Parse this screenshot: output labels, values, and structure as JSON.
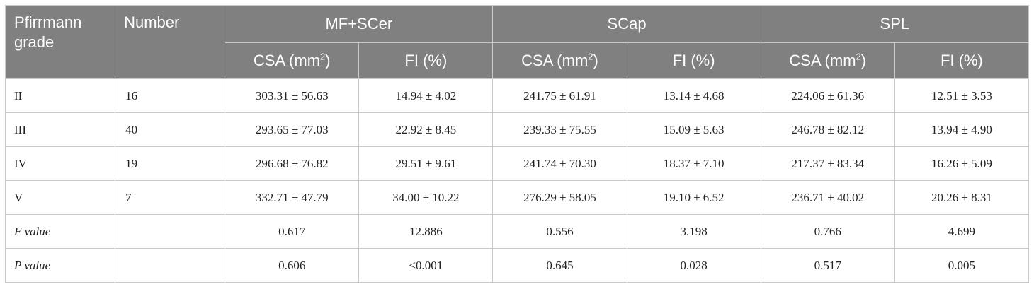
{
  "header": {
    "col_grade": "Pfirrmann grade",
    "col_number": "Number",
    "groups": [
      "MF+SCer",
      "SCap",
      "SPL"
    ],
    "csa_prefix": "CSA (mm",
    "csa_sup": "2",
    "csa_suffix": ")",
    "fi": "FI (%)"
  },
  "rows": [
    {
      "grade": "II",
      "number": "16",
      "values": [
        "303.31 ± 56.63",
        "14.94 ± 4.02",
        "241.75 ± 61.91",
        "13.14 ± 4.68",
        "224.06 ± 61.36",
        "12.51 ± 3.53"
      ]
    },
    {
      "grade": "III",
      "number": "40",
      "values": [
        "293.65 ± 77.03",
        "22.92 ± 8.45",
        "239.33 ± 75.55",
        "15.09 ± 5.63",
        "246.78 ± 82.12",
        "13.94 ± 4.90"
      ]
    },
    {
      "grade": "IV",
      "number": "19",
      "values": [
        "296.68 ± 76.82",
        "29.51 ± 9.61",
        "241.74 ± 70.30",
        "18.37 ± 7.10",
        "217.37 ± 83.34",
        "16.26 ± 5.09"
      ]
    },
    {
      "grade": "V",
      "number": "7",
      "values": [
        "332.71 ± 47.79",
        "34.00 ± 10.22",
        "276.29 ± 58.05",
        "19.10 ± 6.52",
        "236.71 ± 40.02",
        "20.26 ± 8.31"
      ]
    },
    {
      "grade": "F value",
      "number": "",
      "values": [
        "0.617",
        "12.886",
        "0.556",
        "3.198",
        "0.766",
        "4.699"
      ]
    },
    {
      "grade": "P value",
      "number": "",
      "values": [
        "0.606",
        "<0.001",
        "0.645",
        "0.028",
        "0.517",
        "0.005"
      ]
    }
  ]
}
